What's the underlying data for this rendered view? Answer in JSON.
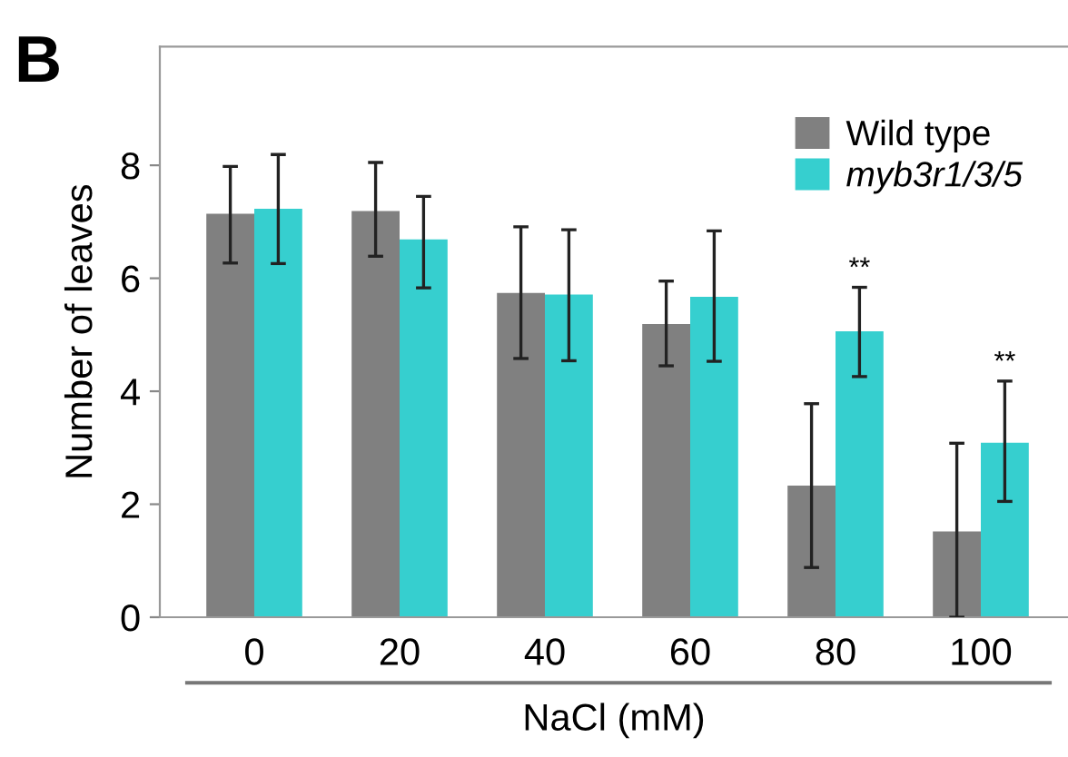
{
  "chart_data": {
    "type": "bar",
    "xlabel": "NaCl (mM)",
    "ylabel": "Number of leaves",
    "categories": [
      "0",
      "20",
      "40",
      "60",
      "80",
      "100"
    ],
    "series": [
      {
        "name": "Wild type",
        "color": "#808080",
        "values": [
          7.14,
          7.19,
          5.74,
          5.19,
          2.33,
          1.52
        ],
        "errors": [
          [
            6.27,
            7.98
          ],
          [
            6.39,
            8.05
          ],
          [
            4.58,
            6.91
          ],
          [
            4.45,
            5.95
          ],
          [
            0.88,
            3.78
          ],
          [
            0,
            3.08
          ]
        ]
      },
      {
        "name": "myb3r1/3/5",
        "color": "#36cfcf",
        "values": [
          7.23,
          6.69,
          5.71,
          5.67,
          5.06,
          3.09
        ],
        "errors": [
          [
            6.26,
            8.19
          ],
          [
            5.83,
            7.45
          ],
          [
            4.54,
            6.86
          ],
          [
            4.53,
            6.84
          ],
          [
            4.26,
            5.84
          ],
          [
            2.05,
            4.18
          ]
        ]
      }
    ],
    "ylim": [
      0,
      10.1
    ],
    "yticks": [
      0,
      2,
      4,
      6,
      8
    ],
    "grid": false,
    "legend": "top right",
    "annotations": [
      "B",
      {
        "text": "**",
        "x": "80",
        "y": 5.06
      },
      {
        "text": "**",
        "x": "100",
        "y": 3.09
      }
    ]
  }
}
